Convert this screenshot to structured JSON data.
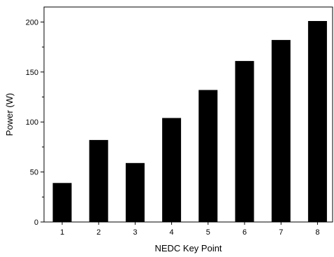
{
  "chart_data": {
    "type": "bar",
    "title": "",
    "xlabel": "NEDC Key Point",
    "ylabel": "Power (W)",
    "categories": [
      "1",
      "2",
      "3",
      "4",
      "5",
      "6",
      "7",
      "8"
    ],
    "values": [
      39,
      82,
      59,
      104,
      132,
      161,
      182,
      201
    ],
    "ylim": [
      0,
      215
    ],
    "yticks": [
      0,
      50,
      100,
      150,
      200
    ],
    "yticks_minor": [
      25,
      75,
      125,
      175
    ],
    "grid": false,
    "legend": "none",
    "bar_color": "#000000"
  }
}
